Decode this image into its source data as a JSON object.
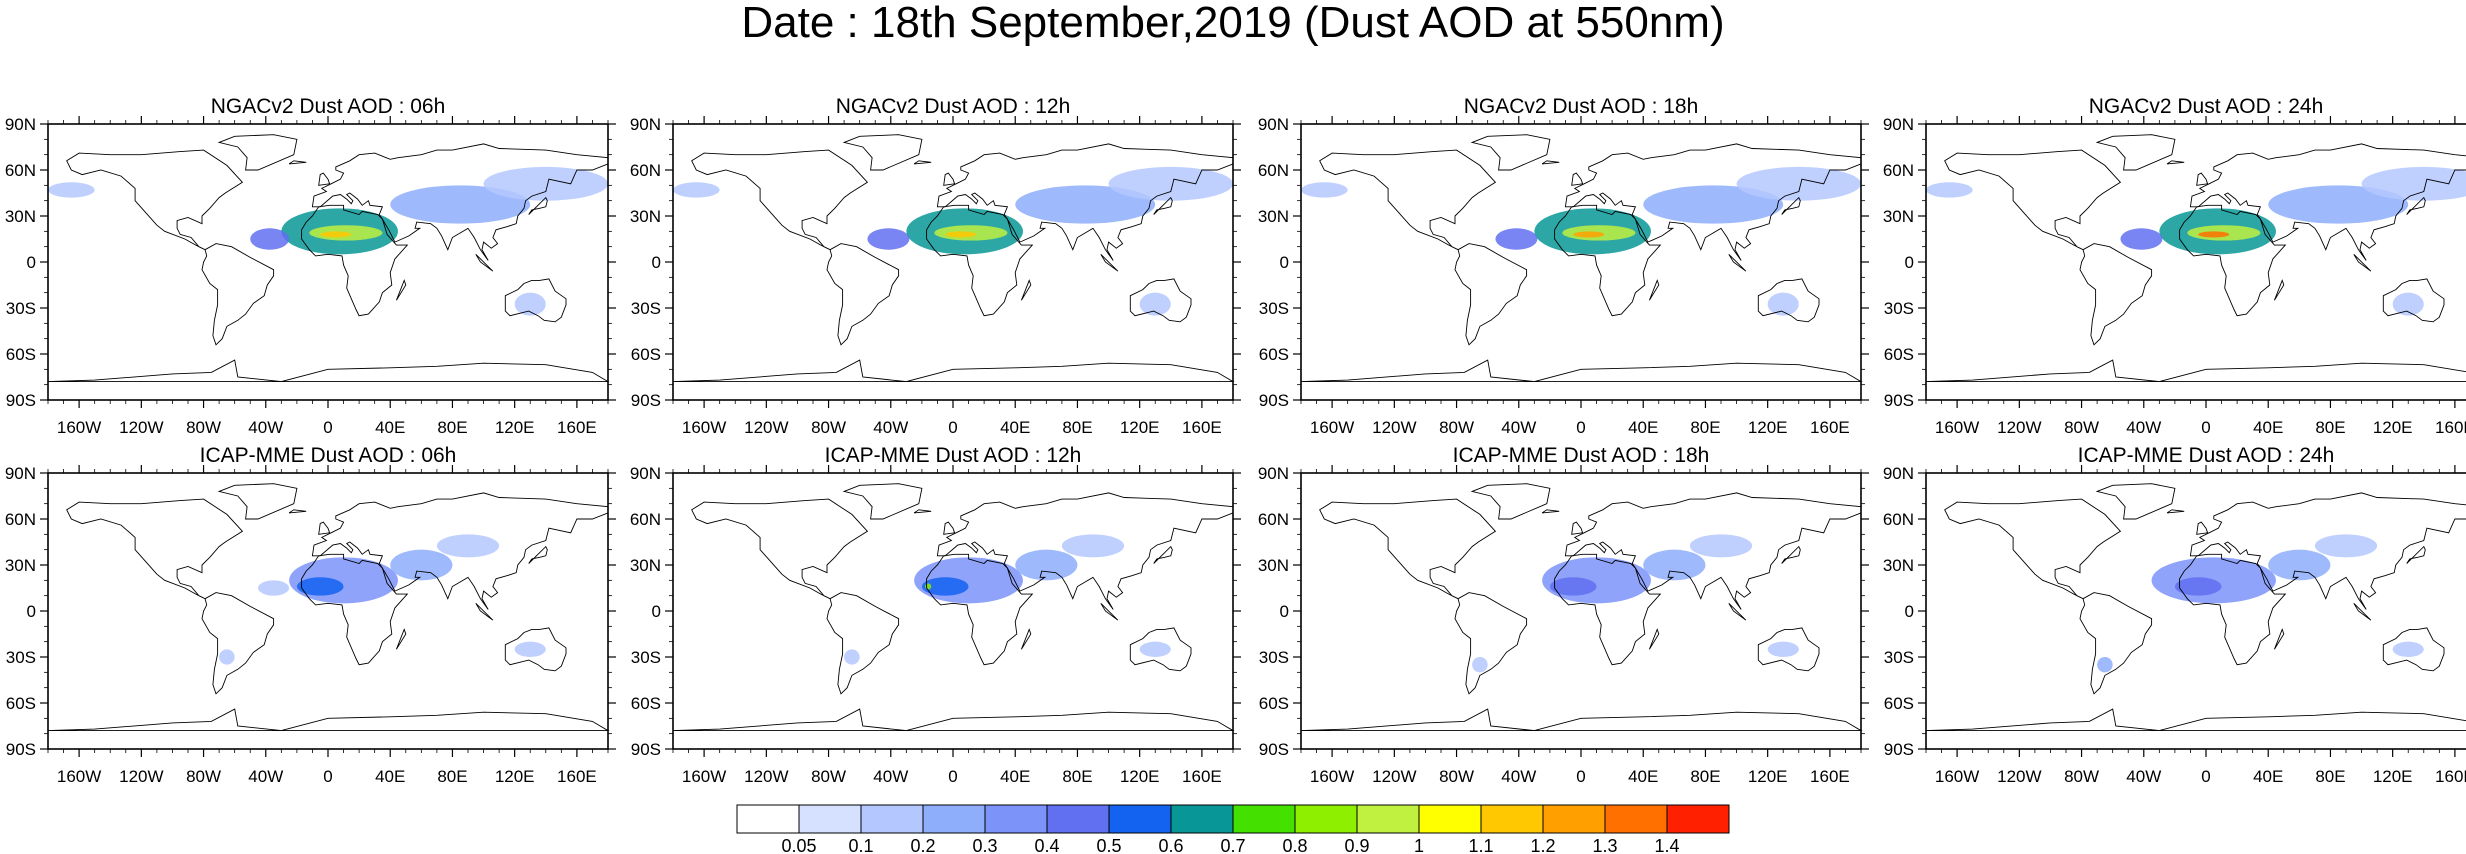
{
  "title": "Date : 18th September,2019 (Dust AOD at 550nm)",
  "chart_data": {
    "type": "heatmap",
    "title": "Date : 18th September,2019 (Dust AOD at 550nm)",
    "variable": "Dust AOD at 550nm",
    "date": "18th September,2019",
    "grid": false,
    "xlim": [
      -180,
      180
    ],
    "ylim": [
      -90,
      90
    ],
    "x_ticks": [
      -160,
      -120,
      -80,
      -40,
      0,
      40,
      80,
      120,
      160
    ],
    "x_ticklabels": [
      "160W",
      "120W",
      "80W",
      "40W",
      "0",
      "40E",
      "80E",
      "120E",
      "160E"
    ],
    "y_ticks": [
      90,
      60,
      30,
      0,
      -30,
      -60,
      -90
    ],
    "y_ticklabels": [
      "90N",
      "60N",
      "30N",
      "0",
      "30S",
      "60S",
      "90S"
    ],
    "colorbar": {
      "placement": "bottom",
      "levels": [
        0.05,
        0.1,
        0.2,
        0.3,
        0.4,
        0.5,
        0.6,
        0.7,
        0.8,
        0.9,
        1,
        1.1,
        1.2,
        1.3,
        1.4
      ],
      "labels": [
        "0.05",
        "0.1",
        "0.2",
        "0.3",
        "0.4",
        "0.5",
        "0.6",
        "0.7",
        "0.8",
        "0.9",
        "1",
        "1.1",
        "1.2",
        "1.3",
        "1.4"
      ],
      "colors": [
        "#ffffff",
        "#d6e1ff",
        "#b4c8ff",
        "#8eaefc",
        "#7c93fa",
        "#6070f0",
        "#1463f0",
        "#089696",
        "#44e000",
        "#8ef000",
        "#c0f040",
        "#ffff00",
        "#ffc800",
        "#ffa000",
        "#ff7000",
        "#ff2000"
      ]
    },
    "panels": [
      {
        "title": "NGACv2 Dust AOD : 06h",
        "model": "NGACv2",
        "hour": "06h",
        "dust_features": [
          {
            "lon": [
              -30,
              45
            ],
            "lat": [
              5,
              35
            ],
            "level": 0.6
          },
          {
            "lon": [
              -12,
              35
            ],
            "lat": [
              14,
              24
            ],
            "level": 0.9
          },
          {
            "lon": [
              -5,
              15
            ],
            "lat": [
              16,
              20
            ],
            "level": 1.1
          },
          {
            "lon": [
              -50,
              -25
            ],
            "lat": [
              8,
              22
            ],
            "level": 0.4
          },
          {
            "lon": [
              40,
              130
            ],
            "lat": [
              25,
              50
            ],
            "level": 0.2
          },
          {
            "lon": [
              100,
              180
            ],
            "lat": [
              40,
              62
            ],
            "level": 0.1
          },
          {
            "lon": [
              -180,
              -150
            ],
            "lat": [
              42,
              52
            ],
            "level": 0.1
          },
          {
            "lon": [
              120,
              140
            ],
            "lat": [
              -35,
              -20
            ],
            "level": 0.1
          }
        ]
      },
      {
        "title": "NGACv2 Dust AOD : 12h",
        "model": "NGACv2",
        "hour": "12h",
        "dust_features": [
          {
            "lon": [
              -30,
              45
            ],
            "lat": [
              5,
              35
            ],
            "level": 0.6
          },
          {
            "lon": [
              -12,
              35
            ],
            "lat": [
              14,
              24
            ],
            "level": 0.9
          },
          {
            "lon": [
              -5,
              15
            ],
            "lat": [
              16,
              20
            ],
            "level": 1.1
          },
          {
            "lon": [
              -55,
              -28
            ],
            "lat": [
              8,
              22
            ],
            "level": 0.4
          },
          {
            "lon": [
              40,
              130
            ],
            "lat": [
              25,
              50
            ],
            "level": 0.2
          },
          {
            "lon": [
              100,
              180
            ],
            "lat": [
              40,
              62
            ],
            "level": 0.1
          },
          {
            "lon": [
              -180,
              -150
            ],
            "lat": [
              42,
              52
            ],
            "level": 0.1
          },
          {
            "lon": [
              120,
              140
            ],
            "lat": [
              -35,
              -20
            ],
            "level": 0.1
          }
        ]
      },
      {
        "title": "NGACv2 Dust AOD : 18h",
        "model": "NGACv2",
        "hour": "18h",
        "dust_features": [
          {
            "lon": [
              -30,
              45
            ],
            "lat": [
              5,
              35
            ],
            "level": 0.6
          },
          {
            "lon": [
              -12,
              35
            ],
            "lat": [
              14,
              24
            ],
            "level": 0.9
          },
          {
            "lon": [
              -5,
              15
            ],
            "lat": [
              16,
              20
            ],
            "level": 1.2
          },
          {
            "lon": [
              -55,
              -28
            ],
            "lat": [
              8,
              22
            ],
            "level": 0.4
          },
          {
            "lon": [
              40,
              130
            ],
            "lat": [
              25,
              50
            ],
            "level": 0.2
          },
          {
            "lon": [
              100,
              180
            ],
            "lat": [
              40,
              62
            ],
            "level": 0.1
          },
          {
            "lon": [
              -180,
              -150
            ],
            "lat": [
              42,
              52
            ],
            "level": 0.1
          },
          {
            "lon": [
              120,
              140
            ],
            "lat": [
              -35,
              -20
            ],
            "level": 0.1
          }
        ]
      },
      {
        "title": "NGACv2 Dust AOD : 24h",
        "model": "NGACv2",
        "hour": "24h",
        "dust_features": [
          {
            "lon": [
              -30,
              45
            ],
            "lat": [
              5,
              35
            ],
            "level": 0.6
          },
          {
            "lon": [
              -12,
              35
            ],
            "lat": [
              14,
              24
            ],
            "level": 0.9
          },
          {
            "lon": [
              -5,
              15
            ],
            "lat": [
              16,
              20
            ],
            "level": 1.3
          },
          {
            "lon": [
              -55,
              -28
            ],
            "lat": [
              8,
              22
            ],
            "level": 0.4
          },
          {
            "lon": [
              40,
              130
            ],
            "lat": [
              25,
              50
            ],
            "level": 0.2
          },
          {
            "lon": [
              100,
              180
            ],
            "lat": [
              40,
              62
            ],
            "level": 0.1
          },
          {
            "lon": [
              -180,
              -150
            ],
            "lat": [
              42,
              52
            ],
            "level": 0.1
          },
          {
            "lon": [
              120,
              140
            ],
            "lat": [
              -35,
              -20
            ],
            "level": 0.1
          }
        ]
      },
      {
        "title": "ICAP-MME Dust AOD : 06h",
        "model": "ICAP-MME",
        "hour": "06h",
        "dust_features": [
          {
            "lon": [
              -25,
              45
            ],
            "lat": [
              5,
              35
            ],
            "level": 0.3
          },
          {
            "lon": [
              -20,
              10
            ],
            "lat": [
              10,
              22
            ],
            "level": 0.5
          },
          {
            "lon": [
              -45,
              -25
            ],
            "lat": [
              10,
              20
            ],
            "level": 0.1
          },
          {
            "lon": [
              40,
              80
            ],
            "lat": [
              20,
              40
            ],
            "level": 0.2
          },
          {
            "lon": [
              70,
              110
            ],
            "lat": [
              35,
              50
            ],
            "level": 0.1
          },
          {
            "lon": [
              -70,
              -60
            ],
            "lat": [
              -35,
              -25
            ],
            "level": 0.1
          },
          {
            "lon": [
              120,
              140
            ],
            "lat": [
              -30,
              -20
            ],
            "level": 0.1
          }
        ]
      },
      {
        "title": "ICAP-MME Dust AOD : 12h",
        "model": "ICAP-MME",
        "hour": "12h",
        "dust_features": [
          {
            "lon": [
              -25,
              45
            ],
            "lat": [
              5,
              35
            ],
            "level": 0.3
          },
          {
            "lon": [
              -20,
              10
            ],
            "lat": [
              10,
              22
            ],
            "level": 0.5
          },
          {
            "lon": [
              -18,
              -14
            ],
            "lat": [
              14,
              18
            ],
            "level": 0.8
          },
          {
            "lon": [
              40,
              80
            ],
            "lat": [
              20,
              40
            ],
            "level": 0.2
          },
          {
            "lon": [
              70,
              110
            ],
            "lat": [
              35,
              50
            ],
            "level": 0.1
          },
          {
            "lon": [
              -70,
              -60
            ],
            "lat": [
              -35,
              -25
            ],
            "level": 0.1
          },
          {
            "lon": [
              120,
              140
            ],
            "lat": [
              -30,
              -20
            ],
            "level": 0.1
          }
        ]
      },
      {
        "title": "ICAP-MME Dust AOD : 18h",
        "model": "ICAP-MME",
        "hour": "18h",
        "dust_features": [
          {
            "lon": [
              -25,
              45
            ],
            "lat": [
              5,
              35
            ],
            "level": 0.3
          },
          {
            "lon": [
              -20,
              10
            ],
            "lat": [
              10,
              22
            ],
            "level": 0.4
          },
          {
            "lon": [
              40,
              80
            ],
            "lat": [
              20,
              40
            ],
            "level": 0.2
          },
          {
            "lon": [
              70,
              110
            ],
            "lat": [
              35,
              50
            ],
            "level": 0.1
          },
          {
            "lon": [
              -70,
              -60
            ],
            "lat": [
              -40,
              -30
            ],
            "level": 0.1
          },
          {
            "lon": [
              120,
              140
            ],
            "lat": [
              -30,
              -20
            ],
            "level": 0.1
          }
        ]
      },
      {
        "title": "ICAP-MME Dust AOD : 24h",
        "model": "ICAP-MME",
        "hour": "24h",
        "dust_features": [
          {
            "lon": [
              -35,
              45
            ],
            "lat": [
              5,
              35
            ],
            "level": 0.3
          },
          {
            "lon": [
              -20,
              10
            ],
            "lat": [
              10,
              22
            ],
            "level": 0.4
          },
          {
            "lon": [
              40,
              80
            ],
            "lat": [
              20,
              40
            ],
            "level": 0.2
          },
          {
            "lon": [
              70,
              110
            ],
            "lat": [
              35,
              50
            ],
            "level": 0.1
          },
          {
            "lon": [
              -70,
              -60
            ],
            "lat": [
              -40,
              -30
            ],
            "level": 0.2
          },
          {
            "lon": [
              120,
              140
            ],
            "lat": [
              -30,
              -20
            ],
            "level": 0.1
          }
        ]
      }
    ]
  }
}
